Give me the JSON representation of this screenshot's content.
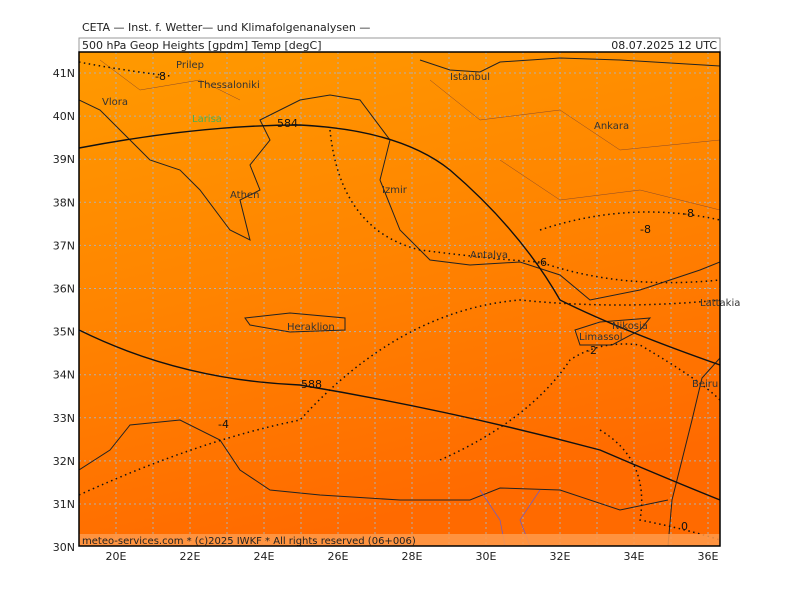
{
  "header": {
    "institute": "CETA — Inst. f. Wetter— und Klimafolgenanalysen —",
    "product": "500 hPa Geop Heights [gpdm] Temp [degC]",
    "valid_time": "08.07.2025 12 UTC"
  },
  "footer": "meteo-services.com * (c)2025 IWKF * All rights reserved (06+006)",
  "lat_labels": [
    "41N",
    "40N",
    "39N",
    "38N",
    "37N",
    "36N",
    "35N",
    "34N",
    "33N",
    "32N",
    "31N",
    "30N"
  ],
  "lon_labels": [
    "20E",
    "22E",
    "24E",
    "26E",
    "28E",
    "30E",
    "32E",
    "34E",
    "36E"
  ],
  "places": [
    "Prilep",
    "Thessaloniki",
    "Vlora",
    "Larisa",
    "Istanbul",
    "Ankara",
    "Izmir",
    "Athen",
    "Antalya",
    "Heraklion",
    "Nikosia",
    "Limassol",
    "Lattakia",
    "Beiru"
  ],
  "contour_labels": [
    "584",
    "588",
    "-8",
    "-8",
    "-6",
    "-4",
    "-2",
    "0",
    "-8"
  ]
}
